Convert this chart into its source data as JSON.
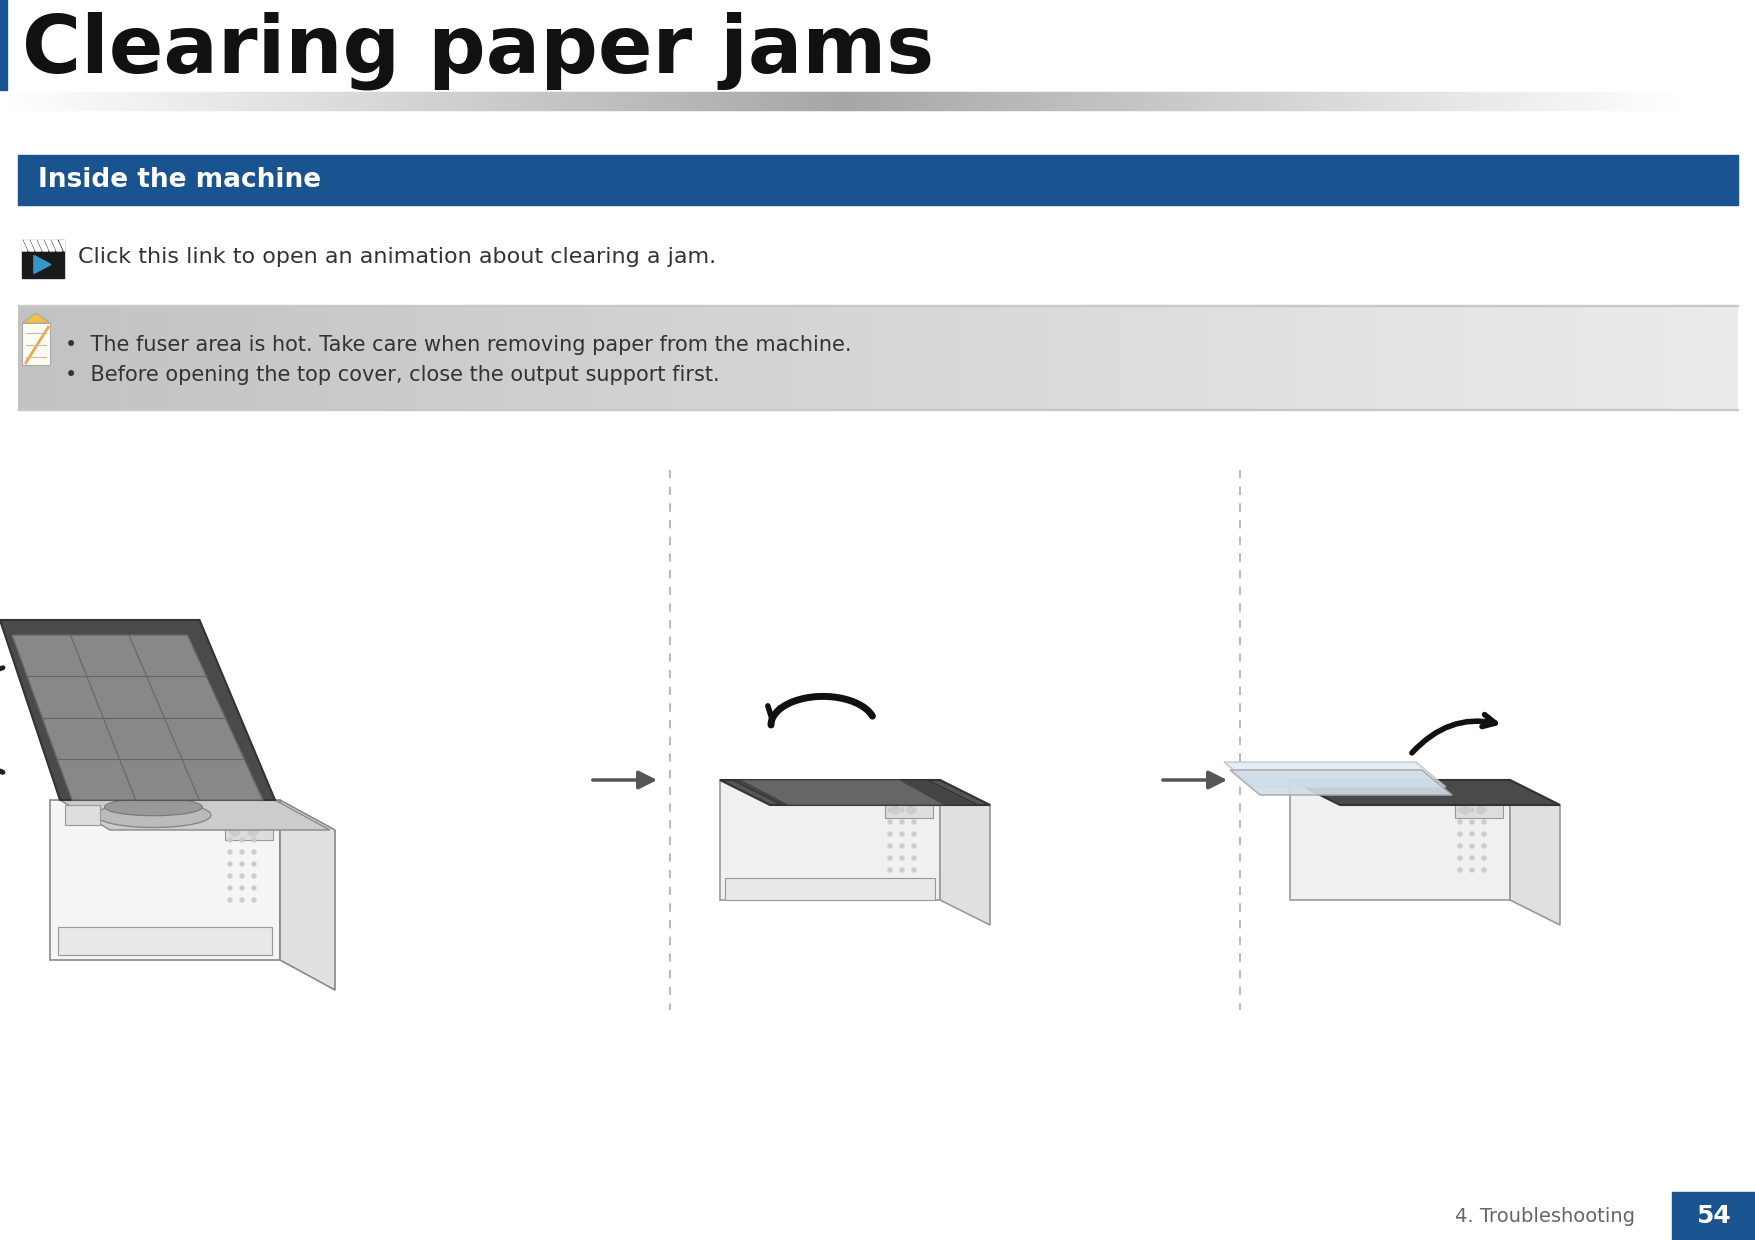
{
  "title": "Clearing paper jams",
  "section_header": "Inside the machine",
  "section_bg_color": "#1a5490",
  "section_text_color": "#ffffff",
  "link_text": "Click this link to open an animation about clearing a jam.",
  "note_line1": "The fuser area is hot. Take care when removing paper from the machine.",
  "note_line2": "Before opening the top cover, close the output support first.",
  "footer_text": "4. Troubleshooting",
  "footer_page": "54",
  "footer_bg_color": "#1a5490",
  "bg_color": "#ffffff",
  "title_left_bar_color": "#1a5490",
  "title_text": "Clearing paper jams",
  "title_fontsize": 58,
  "section_fontsize": 19,
  "link_fontsize": 16,
  "note_fontsize": 15,
  "footer_fontsize": 14
}
